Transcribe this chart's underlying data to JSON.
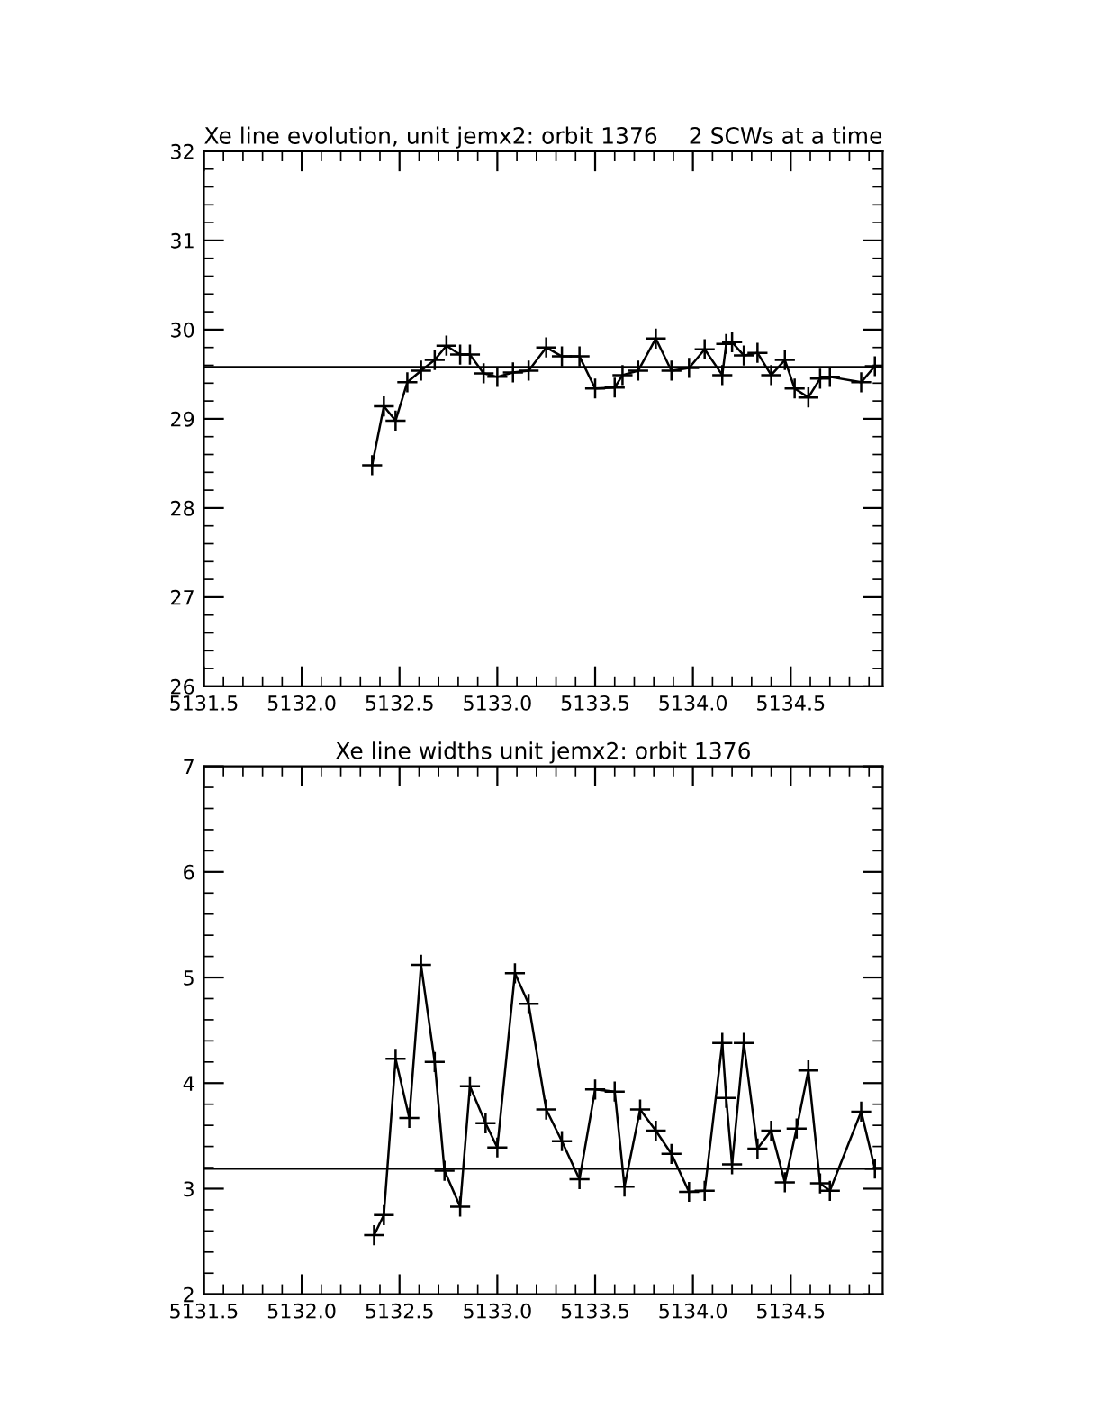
{
  "chart_data": [
    {
      "type": "line",
      "title": "Xe line evolution, unit jemx2: orbit 1376",
      "subtitle": "2 SCWs at a time",
      "marker": "cross",
      "line_style": "solid",
      "grid": false,
      "xlim": [
        5131.5,
        5134.97
      ],
      "xticks": [
        {
          "value": 5131.5,
          "label": "5131.5"
        },
        {
          "value": 5132.0,
          "label": "5132.0"
        },
        {
          "value": 5132.5,
          "label": "5132.5"
        },
        {
          "value": 5133.0,
          "label": "5133.0"
        },
        {
          "value": 5133.5,
          "label": "5133.5"
        },
        {
          "value": 5134.0,
          "label": "5134.0"
        },
        {
          "value": 5134.5,
          "label": "5134.5"
        }
      ],
      "ylim": [
        26,
        32
      ],
      "yticks": [
        26,
        27,
        28,
        29,
        30,
        31,
        32
      ],
      "ref_lines": [
        {
          "axis": "y",
          "value": 29.58,
          "color": "#000000"
        }
      ],
      "series": [
        {
          "color": "#000000",
          "x": [
            5132.36,
            5132.42,
            5132.48,
            5132.54,
            5132.61,
            5132.68,
            5132.74,
            5132.81,
            5132.86,
            5132.93,
            5133.0,
            5133.08,
            5133.16,
            5133.25,
            5133.33,
            5133.42,
            5133.5,
            5133.6,
            5133.64,
            5133.72,
            5133.81,
            5133.89,
            5133.98,
            5134.06,
            5134.15,
            5134.17,
            5134.2,
            5134.26,
            5134.33,
            5134.4,
            5134.47,
            5134.52,
            5134.59,
            5134.65,
            5134.7,
            5134.86,
            5134.93
          ],
          "values": [
            28.48,
            29.14,
            28.98,
            29.41,
            29.54,
            29.66,
            29.82,
            29.72,
            29.72,
            29.51,
            29.47,
            29.52,
            29.54,
            29.8,
            29.7,
            29.7,
            29.34,
            29.35,
            29.49,
            29.54,
            29.9,
            29.54,
            29.57,
            29.78,
            29.49,
            29.84,
            29.86,
            29.71,
            29.74,
            29.49,
            29.66,
            29.34,
            29.24,
            29.45,
            29.47,
            29.41,
            29.59
          ]
        }
      ]
    },
    {
      "type": "line",
      "title": "Xe line widths unit jemx2: orbit 1376",
      "marker": "cross",
      "line_style": "solid",
      "grid": false,
      "xlim": [
        5131.5,
        5134.97
      ],
      "xticks": [
        {
          "value": 5131.5,
          "label": "5131.5"
        },
        {
          "value": 5132.0,
          "label": "5132.0"
        },
        {
          "value": 5132.5,
          "label": "5132.5"
        },
        {
          "value": 5133.0,
          "label": "5133.0"
        },
        {
          "value": 5133.5,
          "label": "5133.5"
        },
        {
          "value": 5134.0,
          "label": "5134.0"
        },
        {
          "value": 5134.5,
          "label": "5134.5"
        }
      ],
      "ylim": [
        2,
        7
      ],
      "yticks": [
        2,
        3,
        4,
        5,
        6,
        7
      ],
      "ref_lines": [
        {
          "axis": "y",
          "value": 3.19,
          "color": "#000000"
        }
      ],
      "series": [
        {
          "color": "#000000",
          "x": [
            5132.37,
            5132.42,
            5132.48,
            5132.55,
            5132.61,
            5132.68,
            5132.73,
            5132.81,
            5132.86,
            5132.94,
            5133.0,
            5133.09,
            5133.16,
            5133.25,
            5133.33,
            5133.42,
            5133.5,
            5133.6,
            5133.65,
            5133.73,
            5133.81,
            5133.89,
            5133.98,
            5134.06,
            5134.15,
            5134.17,
            5134.2,
            5134.26,
            5134.33,
            5134.4,
            5134.47,
            5134.53,
            5134.59,
            5134.65,
            5134.7,
            5134.86,
            5134.93
          ],
          "values": [
            2.56,
            2.75,
            4.23,
            3.67,
            5.12,
            4.2,
            3.17,
            2.83,
            3.97,
            3.62,
            3.39,
            5.04,
            4.75,
            3.75,
            3.45,
            3.09,
            3.94,
            3.92,
            3.02,
            3.75,
            3.55,
            3.33,
            2.97,
            2.98,
            4.38,
            3.86,
            3.23,
            4.38,
            3.38,
            3.55,
            3.06,
            3.57,
            4.12,
            3.05,
            2.98,
            3.73,
            3.19
          ]
        }
      ]
    }
  ]
}
